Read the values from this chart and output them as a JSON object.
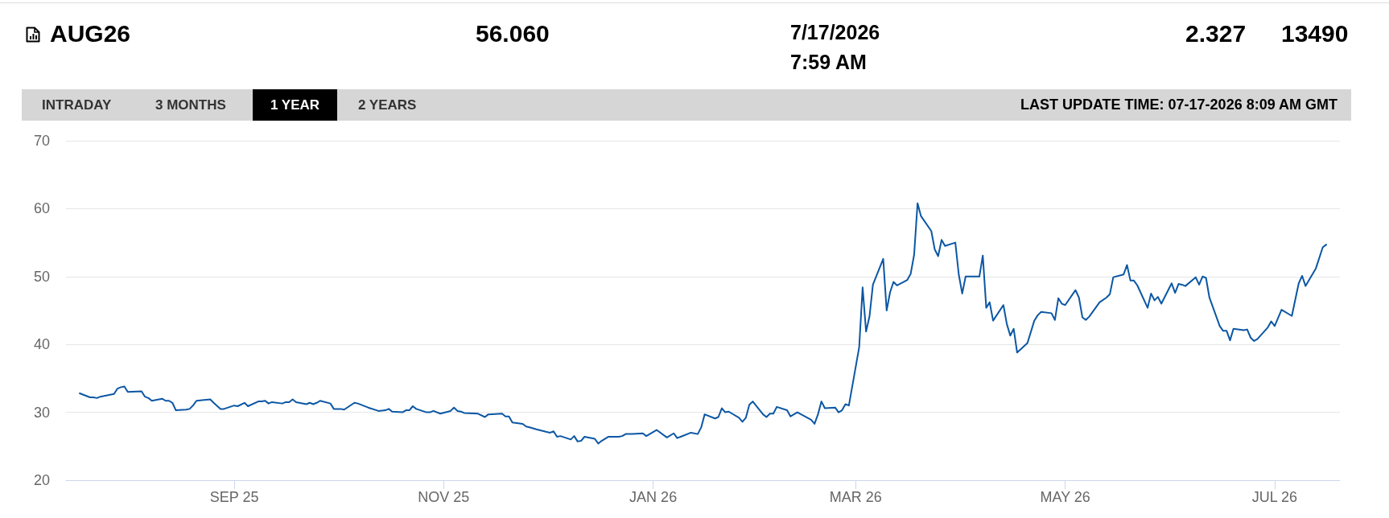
{
  "chart_data": {
    "type": "line",
    "title": "AUG26",
    "annotations": [
      "56.060",
      "7/17/2026",
      "7:59 AM",
      "2.327",
      "13490",
      "INTRADAY",
      "3 MONTHS",
      "1 YEAR",
      "2 YEARS",
      "LAST UPDATE TIME: 07-17-2026 8:09 AM GMT"
    ],
    "x": [
      "2025-07-18",
      "2025-07-21",
      "2025-07-22",
      "2025-07-23",
      "2025-07-24",
      "2025-07-28",
      "2025-07-29",
      "2025-07-30",
      "2025-07-31",
      "2025-08-01",
      "2025-08-05",
      "2025-08-06",
      "2025-08-07",
      "2025-08-08",
      "2025-08-11",
      "2025-08-12",
      "2025-08-13",
      "2025-08-14",
      "2025-08-15",
      "2025-08-18",
      "2025-08-19",
      "2025-08-20",
      "2025-08-21",
      "2025-08-25",
      "2025-08-26",
      "2025-08-28",
      "2025-08-29",
      "2025-09-01",
      "2025-09-02",
      "2025-09-04",
      "2025-09-05",
      "2025-09-08",
      "2025-09-09",
      "2025-09-10",
      "2025-09-11",
      "2025-09-12",
      "2025-09-15",
      "2025-09-16",
      "2025-09-17",
      "2025-09-18",
      "2025-09-19",
      "2025-09-22",
      "2025-09-23",
      "2025-09-24",
      "2025-09-25",
      "2025-09-26",
      "2025-09-29",
      "2025-09-30",
      "2025-10-02",
      "2025-10-03",
      "2025-10-06",
      "2025-10-07",
      "2025-10-10",
      "2025-10-13",
      "2025-10-15",
      "2025-10-16",
      "2025-10-17",
      "2025-10-20",
      "2025-10-21",
      "2025-10-22",
      "2025-10-23",
      "2025-10-24",
      "2025-10-27",
      "2025-10-28",
      "2025-10-29",
      "2025-10-31",
      "2025-11-03",
      "2025-11-04",
      "2025-11-05",
      "2025-11-06",
      "2025-11-07",
      "2025-11-11",
      "2025-11-13",
      "2025-11-14",
      "2025-11-18",
      "2025-11-19",
      "2025-11-20",
      "2025-11-21",
      "2025-11-24",
      "2025-11-25",
      "2025-11-26",
      "2025-11-28",
      "2025-12-01",
      "2025-12-02",
      "2025-12-03",
      "2025-12-04",
      "2025-12-05",
      "2025-12-08",
      "2025-12-09",
      "2025-12-10",
      "2025-12-11",
      "2025-12-12",
      "2025-12-15",
      "2025-12-16",
      "2025-12-17",
      "2025-12-19",
      "2025-12-22",
      "2025-12-23",
      "2025-12-24",
      "2025-12-26",
      "2025-12-29",
      "2025-12-30",
      "2026-01-02",
      "2026-01-05",
      "2026-01-07",
      "2026-01-08",
      "2026-01-09",
      "2026-01-12",
      "2026-01-14",
      "2026-01-15",
      "2026-01-16",
      "2026-01-19",
      "2026-01-20",
      "2026-01-21",
      "2026-01-22",
      "2026-01-23",
      "2026-01-26",
      "2026-01-27",
      "2026-01-28",
      "2026-01-29",
      "2026-01-30",
      "2026-02-02",
      "2026-02-03",
      "2026-02-04",
      "2026-02-05",
      "2026-02-06",
      "2026-02-09",
      "2026-02-10",
      "2026-02-12",
      "2026-02-16",
      "2026-02-17",
      "2026-02-18",
      "2026-02-19",
      "2026-02-20",
      "2026-02-23",
      "2026-02-24",
      "2026-02-25",
      "2026-02-26",
      "2026-02-27",
      "2026-03-02",
      "2026-03-03",
      "2026-03-04",
      "2026-03-05",
      "2026-03-06",
      "2026-03-09",
      "2026-03-10",
      "2026-03-11",
      "2026-03-12",
      "2026-03-13",
      "2026-03-16",
      "2026-03-17",
      "2026-03-18",
      "2026-03-19",
      "2026-03-20",
      "2026-03-23",
      "2026-03-24",
      "2026-03-25",
      "2026-03-26",
      "2026-03-27",
      "2026-03-30",
      "2026-03-31",
      "2026-04-01",
      "2026-04-02",
      "2026-04-06",
      "2026-04-07",
      "2026-04-08",
      "2026-04-09",
      "2026-04-10",
      "2026-04-13",
      "2026-04-14",
      "2026-04-15",
      "2026-04-16",
      "2026-04-17",
      "2026-04-20",
      "2026-04-22",
      "2026-04-23",
      "2026-04-24",
      "2026-04-27",
      "2026-04-28",
      "2026-04-29",
      "2026-04-30",
      "2026-05-01",
      "2026-05-04",
      "2026-05-05",
      "2026-05-06",
      "2026-05-07",
      "2026-05-08",
      "2026-05-11",
      "2026-05-13",
      "2026-05-14",
      "2026-05-15",
      "2026-05-18",
      "2026-05-19",
      "2026-05-20",
      "2026-05-21",
      "2026-05-22",
      "2026-05-25",
      "2026-05-26",
      "2026-05-27",
      "2026-05-28",
      "2026-05-29",
      "2026-06-01",
      "2026-06-02",
      "2026-06-03",
      "2026-06-04",
      "2026-06-05",
      "2026-06-08",
      "2026-06-09",
      "2026-06-10",
      "2026-06-11",
      "2026-06-12",
      "2026-06-15",
      "2026-06-16",
      "2026-06-17",
      "2026-06-18",
      "2026-06-19",
      "2026-06-22",
      "2026-06-23",
      "2026-06-24",
      "2026-06-25",
      "2026-06-26",
      "2026-06-29",
      "2026-06-30",
      "2026-07-01",
      "2026-07-03",
      "2026-07-06",
      "2026-07-08",
      "2026-07-09",
      "2026-07-10",
      "2026-07-13",
      "2026-07-15",
      "2026-07-16"
    ],
    "values": [
      32.8,
      32.2,
      32.2,
      32.1,
      32.3,
      32.7,
      33.5,
      33.7,
      33.8,
      33.0,
      33.1,
      32.3,
      32.1,
      31.7,
      32.0,
      31.7,
      31.7,
      31.4,
      30.3,
      30.4,
      30.5,
      31.0,
      31.7,
      31.9,
      31.4,
      30.5,
      30.5,
      31.0,
      30.9,
      31.4,
      30.9,
      31.6,
      31.6,
      31.7,
      31.3,
      31.5,
      31.3,
      31.5,
      31.5,
      31.9,
      31.5,
      31.2,
      31.4,
      31.2,
      31.4,
      31.7,
      31.3,
      30.5,
      30.5,
      30.4,
      31.4,
      31.3,
      30.7,
      30.2,
      30.3,
      30.5,
      30.1,
      30.0,
      30.3,
      30.3,
      30.9,
      30.5,
      30.0,
      30.0,
      30.2,
      29.8,
      30.2,
      30.7,
      30.2,
      30.1,
      29.9,
      29.8,
      29.3,
      29.7,
      29.8,
      29.4,
      29.4,
      28.5,
      28.3,
      27.9,
      27.8,
      27.5,
      27.1,
      27.0,
      27.2,
      26.4,
      26.5,
      26.0,
      26.5,
      25.7,
      25.8,
      26.4,
      26.1,
      25.4,
      25.8,
      26.4,
      26.4,
      26.5,
      26.8,
      26.8,
      26.9,
      26.5,
      27.4,
      26.3,
      26.9,
      26.2,
      26.4,
      27.0,
      26.8,
      27.8,
      29.7,
      29.1,
      29.3,
      30.6,
      30.0,
      30.1,
      29.2,
      28.6,
      29.2,
      31.1,
      31.6,
      29.7,
      29.3,
      29.8,
      29.8,
      30.8,
      30.3,
      29.4,
      30.0,
      28.9,
      28.3,
      29.7,
      31.6,
      30.6,
      30.7,
      30.0,
      30.3,
      31.2,
      31.0,
      39.6,
      48.4,
      41.9,
      44.1,
      48.8,
      52.6,
      45.0,
      47.7,
      49.2,
      48.7,
      49.5,
      50.4,
      53.2,
      60.8,
      58.9,
      56.7,
      54.0,
      53.0,
      55.4,
      54.5,
      55.0,
      50.3,
      47.5,
      50.0,
      50.0,
      53.1,
      45.4,
      46.2,
      43.5,
      45.8,
      43.0,
      41.3,
      42.3,
      38.8,
      40.2,
      43.5,
      44.3,
      44.8,
      44.6,
      43.6,
      46.8,
      46.0,
      45.8,
      48.0,
      46.9,
      44.0,
      43.6,
      44.1,
      46.2,
      46.9,
      47.4,
      49.9,
      50.3,
      51.7,
      49.4,
      49.4,
      48.7,
      45.4,
      47.5,
      46.5,
      47.0,
      46.0,
      49.0,
      47.6,
      48.9,
      48.8,
      48.6,
      49.9,
      48.8,
      50.0,
      49.8,
      46.9,
      42.7,
      42.0,
      42.0,
      40.6,
      42.3,
      42.1,
      42.2,
      41.0,
      40.5,
      40.8,
      42.5,
      43.4,
      42.7,
      45.1,
      44.2,
      49.0,
      50.1,
      48.6,
      51.2,
      54.3,
      54.7
    ],
    "color": "#0b57a4",
    "xlim": [
      "2025-07-14",
      "2026-07-20"
    ],
    "xticks": [
      {
        "value": "2025-09-01",
        "label": "SEP 25"
      },
      {
        "value": "2025-11-01",
        "label": "NOV 25"
      },
      {
        "value": "2026-01-01",
        "label": "JAN 26"
      },
      {
        "value": "2026-03-01",
        "label": "MAR 26"
      },
      {
        "value": "2026-05-01",
        "label": "MAY 26"
      },
      {
        "value": "2026-07-01",
        "label": "JUL 26"
      }
    ],
    "ylim": [
      20,
      70
    ],
    "yticks": [
      20,
      30,
      40,
      50,
      60,
      70
    ],
    "grid": "y"
  }
}
